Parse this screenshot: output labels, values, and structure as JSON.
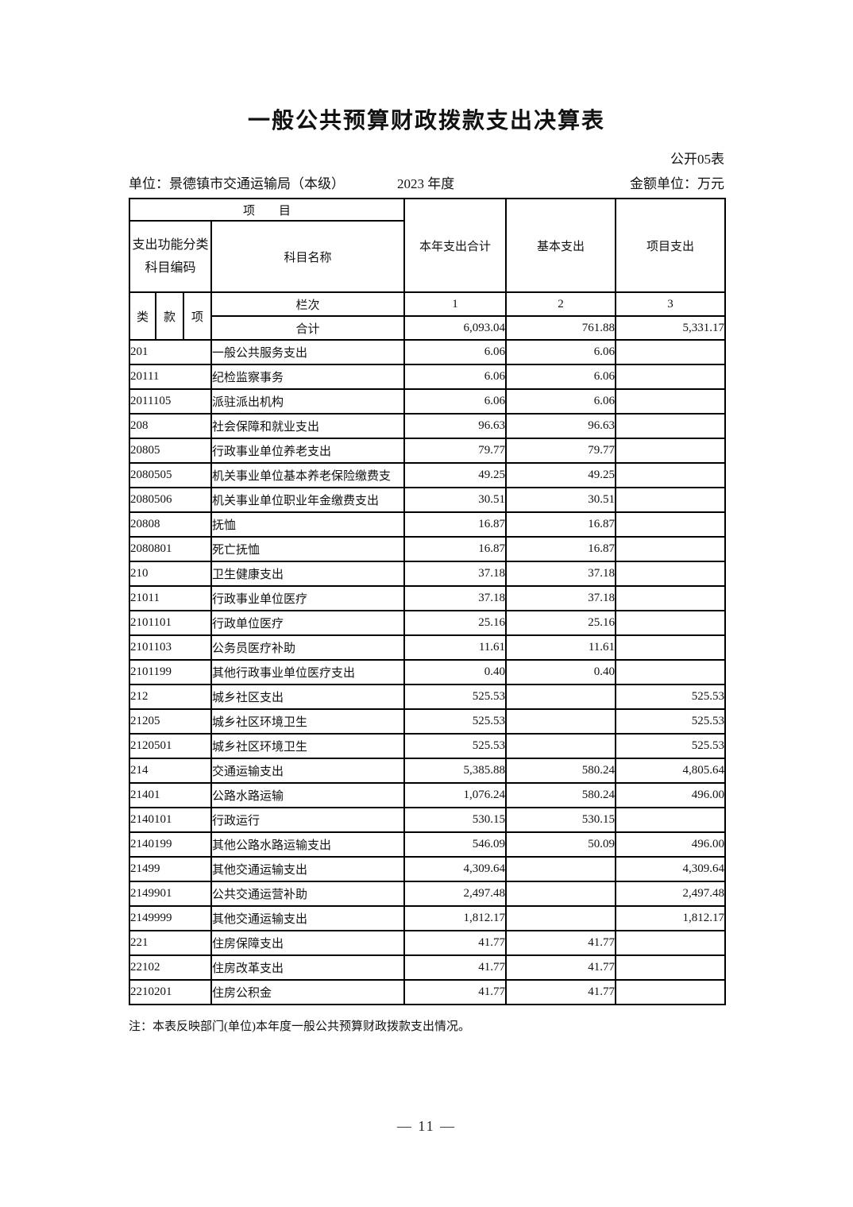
{
  "page": {
    "title": "一般公共预算财政拨款支出决算表",
    "table_code": "公开05表",
    "unit_label": "单位：景德镇市交通运输局（本级）",
    "fiscal_year": "2023 年度",
    "amount_unit": "金额单位：万元",
    "note": "注：本表反映部门(单位)本年度一般公共预算财政拨款支出情况。",
    "page_number": "— 11 —"
  },
  "table": {
    "header": {
      "project": "项　　目",
      "func_class_line1": "支出功能分类",
      "func_class_line2": "科目编码",
      "subject_name": "科目名称",
      "col_total": "本年支出合计",
      "col_basic": "基本支出",
      "col_project": "项目支出",
      "sub_class": "类",
      "sub_section": "款",
      "sub_item": "项",
      "rank_label": "栏次",
      "rank_cols": [
        "1",
        "2",
        "3"
      ],
      "total_label": "合计",
      "totals": [
        "6,093.04",
        "761.88",
        "5,331.17"
      ]
    },
    "rows": [
      {
        "code": "201",
        "name": "一般公共服务支出",
        "total": "6.06",
        "basic": "6.06",
        "project": ""
      },
      {
        "code": "20111",
        "name": "纪检监察事务",
        "total": "6.06",
        "basic": "6.06",
        "project": ""
      },
      {
        "code": "2011105",
        "name": "派驻派出机构",
        "total": "6.06",
        "basic": "6.06",
        "project": ""
      },
      {
        "code": "208",
        "name": "社会保障和就业支出",
        "total": "96.63",
        "basic": "96.63",
        "project": ""
      },
      {
        "code": "20805",
        "name": "行政事业单位养老支出",
        "total": "79.77",
        "basic": "79.77",
        "project": ""
      },
      {
        "code": "2080505",
        "name": "机关事业单位基本养老保险缴费支",
        "total": "49.25",
        "basic": "49.25",
        "project": ""
      },
      {
        "code": "2080506",
        "name": "机关事业单位职业年金缴费支出",
        "total": "30.51",
        "basic": "30.51",
        "project": ""
      },
      {
        "code": "20808",
        "name": "抚恤",
        "total": "16.87",
        "basic": "16.87",
        "project": ""
      },
      {
        "code": "2080801",
        "name": "死亡抚恤",
        "total": "16.87",
        "basic": "16.87",
        "project": ""
      },
      {
        "code": "210",
        "name": "卫生健康支出",
        "total": "37.18",
        "basic": "37.18",
        "project": ""
      },
      {
        "code": "21011",
        "name": "行政事业单位医疗",
        "total": "37.18",
        "basic": "37.18",
        "project": ""
      },
      {
        "code": "2101101",
        "name": "行政单位医疗",
        "total": "25.16",
        "basic": "25.16",
        "project": ""
      },
      {
        "code": "2101103",
        "name": "公务员医疗补助",
        "total": "11.61",
        "basic": "11.61",
        "project": ""
      },
      {
        "code": "2101199",
        "name": "其他行政事业单位医疗支出",
        "total": "0.40",
        "basic": "0.40",
        "project": ""
      },
      {
        "code": "212",
        "name": "城乡社区支出",
        "total": "525.53",
        "basic": "",
        "project": "525.53"
      },
      {
        "code": "21205",
        "name": "城乡社区环境卫生",
        "total": "525.53",
        "basic": "",
        "project": "525.53"
      },
      {
        "code": "2120501",
        "name": "城乡社区环境卫生",
        "total": "525.53",
        "basic": "",
        "project": "525.53"
      },
      {
        "code": "214",
        "name": "交通运输支出",
        "total": "5,385.88",
        "basic": "580.24",
        "project": "4,805.64"
      },
      {
        "code": "21401",
        "name": "公路水路运输",
        "total": "1,076.24",
        "basic": "580.24",
        "project": "496.00"
      },
      {
        "code": "2140101",
        "name": "行政运行",
        "total": "530.15",
        "basic": "530.15",
        "project": ""
      },
      {
        "code": "2140199",
        "name": "其他公路水路运输支出",
        "total": "546.09",
        "basic": "50.09",
        "project": "496.00"
      },
      {
        "code": "21499",
        "name": "其他交通运输支出",
        "total": "4,309.64",
        "basic": "",
        "project": "4,309.64"
      },
      {
        "code": "2149901",
        "name": "公共交通运营补助",
        "total": "2,497.48",
        "basic": "",
        "project": "2,497.48"
      },
      {
        "code": "2149999",
        "name": "其他交通运输支出",
        "total": "1,812.17",
        "basic": "",
        "project": "1,812.17"
      },
      {
        "code": "221",
        "name": "住房保障支出",
        "total": "41.77",
        "basic": "41.77",
        "project": ""
      },
      {
        "code": "22102",
        "name": "住房改革支出",
        "total": "41.77",
        "basic": "41.77",
        "project": ""
      },
      {
        "code": "2210201",
        "name": "住房公积金",
        "total": "41.77",
        "basic": "41.77",
        "project": ""
      }
    ]
  }
}
